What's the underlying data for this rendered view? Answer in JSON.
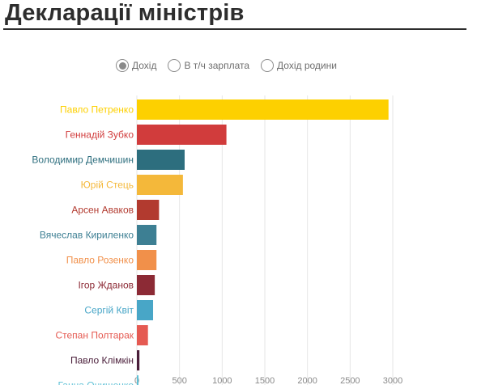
{
  "header": {
    "title": "Декларації міністрів"
  },
  "toggles": [
    {
      "label": "Дохід",
      "selected": true
    },
    {
      "label": "В т/ч зарплата",
      "selected": false
    },
    {
      "label": "Дохід родини",
      "selected": false
    }
  ],
  "chart_data": {
    "type": "bar",
    "orientation": "horizontal",
    "title": "",
    "xlabel": "",
    "ylabel": "",
    "xlim": [
      0,
      3000
    ],
    "x_ticks": [
      "0",
      "500",
      "1000",
      "1500",
      "2000",
      "2500",
      "3000"
    ],
    "grid": true,
    "categories": [
      "Павло Петренко",
      "Геннадій Зубко",
      "Володимир Демчишин",
      "Юрій Стець",
      "Арсен Аваков",
      "Вячеслав Кириленко",
      "Павло Розенко",
      "Ігор Жданов",
      "Сергій Квіт",
      "Степан Полтарак",
      "Павло Клімкін",
      "Ганна Онищенко"
    ],
    "values": [
      2950,
      1050,
      560,
      540,
      260,
      230,
      230,
      210,
      190,
      130,
      30,
      15
    ],
    "colors": [
      "#fdd000",
      "#d13c3c",
      "#2d6e7e",
      "#f4b83a",
      "#b23a2f",
      "#3d7f93",
      "#f1904a",
      "#8c2a35",
      "#48a6c7",
      "#e55a52",
      "#4a1e3a",
      "#5fc1d6"
    ]
  }
}
